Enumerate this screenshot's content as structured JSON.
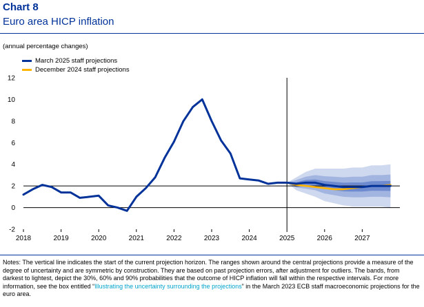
{
  "header": {
    "chart_label": "Chart 8",
    "title": "Euro area HICP inflation",
    "subtitle": "(annual percentage changes)"
  },
  "legend": [
    {
      "label": "March 2025 staff projections",
      "color": "#003299"
    },
    {
      "label": "December 2024 staff projections",
      "color": "#ffb400"
    }
  ],
  "notes": {
    "part1": "Notes: The vertical line indicates the start of the current projection horizon. The ranges shown around the central projections provide a measure of the degree of uncertainty and are symmetric by construction. They are based on past projection errors, after adjustment for outliers. The bands, from darkest to lightest, depict the 30%, 60% and 90% probabilities that the outcome of HICP inflation will fall within the respective intervals. For more information, see the box entitled “",
    "link": "Illustrating the uncertainty surrounding the projections",
    "part2": "” in the March 2023 ECB staff macroeconomic projections for the euro area."
  },
  "chart_data": {
    "type": "line",
    "x_ticks": [
      "2018",
      "2019",
      "2020",
      "2021",
      "2022",
      "2023",
      "2024",
      "2025",
      "2026",
      "2027"
    ],
    "y_ticks": [
      -2,
      0,
      2,
      4,
      6,
      8,
      10,
      12
    ],
    "xlim": [
      2018.0,
      2028.0
    ],
    "ylim": [
      -2,
      12
    ],
    "projection_start": 2025.0,
    "series": [
      {
        "name": "March 2025 staff projections",
        "color": "#003299",
        "points": [
          [
            2018.0,
            1.2
          ],
          [
            2018.25,
            1.7
          ],
          [
            2018.5,
            2.1
          ],
          [
            2018.75,
            1.9
          ],
          [
            2019.0,
            1.4
          ],
          [
            2019.25,
            1.4
          ],
          [
            2019.5,
            0.9
          ],
          [
            2019.75,
            1.0
          ],
          [
            2020.0,
            1.1
          ],
          [
            2020.25,
            0.2
          ],
          [
            2020.5,
            0.0
          ],
          [
            2020.75,
            -0.3
          ],
          [
            2021.0,
            1.0
          ],
          [
            2021.25,
            1.8
          ],
          [
            2021.5,
            2.8
          ],
          [
            2021.75,
            4.6
          ],
          [
            2022.0,
            6.1
          ],
          [
            2022.25,
            8.0
          ],
          [
            2022.5,
            9.3
          ],
          [
            2022.75,
            10.0
          ],
          [
            2023.0,
            8.0
          ],
          [
            2023.25,
            6.2
          ],
          [
            2023.5,
            5.0
          ],
          [
            2023.75,
            2.7
          ],
          [
            2024.0,
            2.6
          ],
          [
            2024.25,
            2.5
          ],
          [
            2024.5,
            2.2
          ],
          [
            2024.75,
            2.3
          ],
          [
            2025.0,
            2.3
          ],
          [
            2025.25,
            2.2
          ],
          [
            2025.5,
            2.3
          ],
          [
            2025.75,
            2.3
          ],
          [
            2026.0,
            2.1
          ],
          [
            2026.25,
            2.0
          ],
          [
            2026.5,
            1.9
          ],
          [
            2026.75,
            1.9
          ],
          [
            2027.0,
            1.9
          ],
          [
            2027.25,
            2.0
          ],
          [
            2027.5,
            2.0
          ],
          [
            2027.75,
            2.0
          ]
        ]
      },
      {
        "name": "December 2024 staff projections",
        "color": "#ffb400",
        "points": [
          [
            2024.5,
            2.2
          ],
          [
            2024.75,
            2.3
          ],
          [
            2025.0,
            2.3
          ],
          [
            2025.25,
            2.1
          ],
          [
            2025.5,
            2.0
          ],
          [
            2025.75,
            1.9
          ],
          [
            2026.0,
            1.8
          ],
          [
            2026.25,
            1.7
          ],
          [
            2026.5,
            1.7
          ],
          [
            2026.75,
            1.8
          ],
          [
            2027.0,
            1.9
          ],
          [
            2027.25,
            2.0
          ],
          [
            2027.5,
            2.0
          ],
          [
            2027.75,
            2.1
          ]
        ]
      }
    ],
    "uncertainty_bands": {
      "x": [
        2025.0,
        2025.25,
        2025.5,
        2025.75,
        2026.0,
        2026.25,
        2026.5,
        2026.75,
        2027.0,
        2027.25,
        2027.5,
        2027.75
      ],
      "center": [
        2.3,
        2.2,
        2.3,
        2.3,
        2.1,
        2.0,
        1.9,
        1.9,
        1.9,
        2.0,
        2.0,
        2.0
      ],
      "half_widths": {
        "90%": [
          0.0,
          0.6,
          1.0,
          1.3,
          1.5,
          1.6,
          1.7,
          1.8,
          1.8,
          1.9,
          1.9,
          2.0
        ],
        "60%": [
          0.0,
          0.35,
          0.55,
          0.7,
          0.8,
          0.85,
          0.9,
          0.95,
          0.95,
          1.0,
          1.0,
          1.05
        ],
        "30%": [
          0.0,
          0.15,
          0.25,
          0.3,
          0.35,
          0.38,
          0.4,
          0.42,
          0.42,
          0.44,
          0.45,
          0.46
        ]
      },
      "colors": {
        "90%": "#ced8ee",
        "60%": "#a2b4e0",
        "30%": "#6f8bd0"
      }
    }
  }
}
